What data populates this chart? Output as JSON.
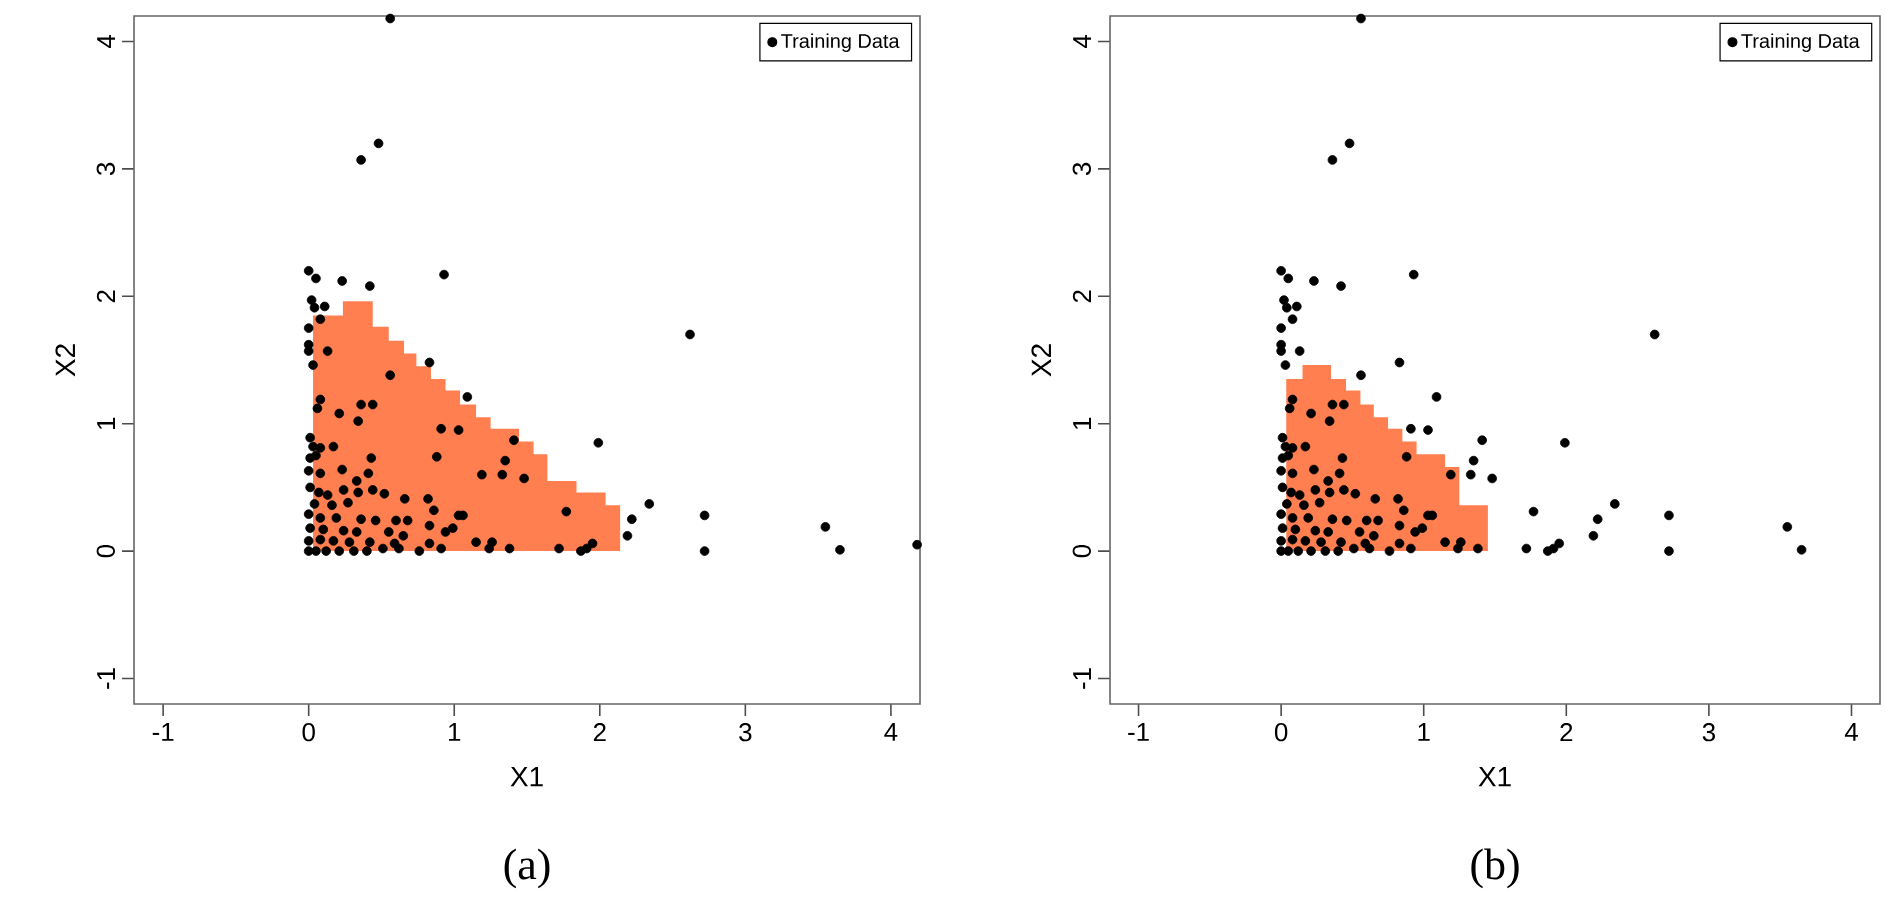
{
  "chart_data": [
    {
      "type": "scatter",
      "xlabel": "X1",
      "ylabel": "X2",
      "annotations": [
        "(a)"
      ],
      "xlim": [
        -1.2,
        4.2
      ],
      "ylim": [
        -1.2,
        4.2
      ],
      "xticks": [
        -1,
        0,
        1,
        2,
        3,
        4
      ],
      "yticks": [
        -1,
        0,
        1,
        2,
        3,
        4
      ],
      "legend": "top right",
      "grid": false,
      "marker": "circle",
      "series": [
        {
          "type": "area",
          "marker": "none",
          "color": "#ff7f50",
          "x": [
            0.03,
            0.235,
            0.235,
            0.44,
            0.44,
            0.55,
            0.55,
            0.655,
            0.655,
            0.74,
            0.74,
            0.84,
            0.84,
            0.94,
            0.94,
            1.04,
            1.04,
            1.15,
            1.15,
            1.25,
            1.25,
            1.445,
            1.445,
            1.545,
            1.545,
            1.64,
            1.64,
            1.84,
            1.84,
            2.04,
            2.04,
            2.14
          ],
          "values": [
            1.85,
            1.85,
            1.96,
            1.96,
            1.76,
            1.76,
            1.65,
            1.65,
            1.55,
            1.55,
            1.45,
            1.45,
            1.35,
            1.35,
            1.26,
            1.26,
            1.15,
            1.15,
            1.05,
            1.05,
            0.96,
            0.96,
            0.86,
            0.86,
            0.76,
            0.76,
            0.55,
            0.55,
            0.46,
            0.46,
            0.36,
            0.36
          ]
        },
        {
          "name": "Training Data",
          "color": "#000000",
          "x": [
            0.36,
            0.48,
            0.0,
            0.05,
            0.23,
            0.42,
            0.93,
            0.02,
            0.04,
            0.11,
            0.08,
            0.0,
            0.0,
            0.0,
            0.13,
            0.03,
            0.83,
            0.56,
            1.09,
            0.08,
            0.06,
            0.36,
            0.44,
            0.21,
            0.34,
            0.91,
            1.03,
            1.41,
            1.99,
            2.62,
            0.01,
            0.03,
            0.08,
            0.17,
            0.01,
            0.05,
            0.43,
            0.88,
            1.35,
            0.0,
            0.08,
            0.23,
            0.41,
            1.19,
            1.33,
            1.48,
            0.33,
            0.01,
            0.07,
            0.13,
            0.24,
            0.34,
            0.44,
            0.52,
            0.66,
            0.82,
            0.04,
            0.16,
            0.27,
            0.86,
            1.77,
            2.34,
            2.72,
            3.55,
            0.0,
            0.08,
            0.19,
            0.36,
            0.46,
            0.6,
            0.68,
            1.03,
            1.06,
            2.22,
            0.01,
            0.1,
            0.24,
            0.33,
            0.55,
            0.65,
            0.83,
            0.94,
            0.99,
            2.19,
            0.0,
            0.08,
            0.17,
            0.28,
            0.42,
            0.59,
            0.83,
            1.15,
            1.26,
            1.95,
            0.0,
            0.05,
            0.12,
            0.21,
            0.31,
            0.4,
            0.51,
            0.62,
            0.76,
            0.91,
            1.24,
            1.38,
            1.72,
            1.87,
            1.91,
            2.72,
            3.65,
            4.18,
            0.56
          ],
          "values": [
            3.07,
            3.2,
            2.2,
            2.14,
            2.12,
            2.08,
            2.17,
            1.97,
            1.91,
            1.92,
            1.82,
            1.75,
            1.62,
            1.57,
            1.57,
            1.46,
            1.48,
            1.38,
            1.21,
            1.19,
            1.12,
            1.15,
            1.15,
            1.08,
            1.02,
            0.96,
            0.95,
            0.87,
            0.85,
            1.7,
            0.89,
            0.82,
            0.81,
            0.82,
            0.73,
            0.75,
            0.73,
            0.74,
            0.71,
            0.63,
            0.61,
            0.64,
            0.61,
            0.6,
            0.6,
            0.57,
            0.55,
            0.5,
            0.46,
            0.44,
            0.48,
            0.46,
            0.48,
            0.45,
            0.41,
            0.41,
            0.37,
            0.36,
            0.38,
            0.32,
            0.31,
            0.37,
            0.28,
            0.19,
            0.29,
            0.26,
            0.26,
            0.25,
            0.24,
            0.24,
            0.24,
            0.28,
            0.28,
            0.25,
            0.18,
            0.17,
            0.16,
            0.15,
            0.15,
            0.12,
            0.2,
            0.15,
            0.18,
            0.12,
            0.08,
            0.09,
            0.08,
            0.07,
            0.07,
            0.06,
            0.06,
            0.07,
            0.07,
            0.06,
            0,
            0,
            0,
            0,
            0,
            0,
            0.02,
            0.02,
            0,
            0.02,
            0.02,
            0.02,
            0.02,
            0,
            0.02,
            0,
            0.01,
            0.05,
            4.18
          ]
        }
      ]
    },
    {
      "type": "scatter",
      "xlabel": "X1",
      "ylabel": "X2",
      "annotations": [
        "(b)"
      ],
      "xlim": [
        -1.2,
        4.2
      ],
      "ylim": [
        -1.2,
        4.2
      ],
      "xticks": [
        -1,
        0,
        1,
        2,
        3,
        4
      ],
      "yticks": [
        -1,
        0,
        1,
        2,
        3,
        4
      ],
      "legend": "top right",
      "grid": false,
      "marker": "circle",
      "series": [
        {
          "type": "area",
          "marker": "none",
          "color": "#ff7f50",
          "x": [
            0.036,
            0.15,
            0.15,
            0.35,
            0.35,
            0.455,
            0.455,
            0.556,
            0.556,
            0.65,
            0.65,
            0.75,
            0.75,
            0.85,
            0.85,
            0.95,
            0.95,
            1.15,
            1.15,
            1.25,
            1.25,
            1.45
          ],
          "values": [
            1.35,
            1.35,
            1.46,
            1.46,
            1.35,
            1.35,
            1.26,
            1.26,
            1.15,
            1.15,
            1.05,
            1.05,
            0.96,
            0.96,
            0.86,
            0.86,
            0.76,
            0.76,
            0.66,
            0.66,
            0.36,
            0.36
          ]
        },
        {
          "name": "Training Data",
          "color": "#000000",
          "x": [
            0.36,
            0.48,
            0.0,
            0.05,
            0.23,
            0.42,
            0.93,
            0.02,
            0.04,
            0.11,
            0.08,
            0.0,
            0.0,
            0.0,
            0.13,
            0.03,
            0.83,
            0.56,
            1.09,
            0.08,
            0.06,
            0.36,
            0.44,
            0.21,
            0.34,
            0.91,
            1.03,
            1.41,
            1.99,
            2.62,
            0.01,
            0.03,
            0.08,
            0.17,
            0.01,
            0.05,
            0.43,
            0.88,
            1.35,
            0.0,
            0.08,
            0.23,
            0.41,
            1.19,
            1.33,
            1.48,
            0.33,
            0.01,
            0.07,
            0.13,
            0.24,
            0.34,
            0.44,
            0.52,
            0.66,
            0.82,
            0.04,
            0.16,
            0.27,
            0.86,
            1.77,
            2.34,
            2.72,
            3.55,
            0.0,
            0.08,
            0.19,
            0.36,
            0.46,
            0.6,
            0.68,
            1.03,
            1.06,
            2.22,
            0.01,
            0.1,
            0.24,
            0.33,
            0.55,
            0.65,
            0.83,
            0.94,
            0.99,
            2.19,
            0.0,
            0.08,
            0.17,
            0.28,
            0.42,
            0.59,
            0.83,
            1.15,
            1.26,
            1.95,
            0.0,
            0.05,
            0.12,
            0.21,
            0.31,
            0.4,
            0.51,
            0.62,
            0.76,
            0.91,
            1.24,
            1.38,
            1.72,
            1.87,
            1.91,
            2.72,
            3.65,
            0.56
          ],
          "values": [
            3.07,
            3.2,
            2.2,
            2.14,
            2.12,
            2.08,
            2.17,
            1.97,
            1.91,
            1.92,
            1.82,
            1.75,
            1.62,
            1.57,
            1.57,
            1.46,
            1.48,
            1.38,
            1.21,
            1.19,
            1.12,
            1.15,
            1.15,
            1.08,
            1.02,
            0.96,
            0.95,
            0.87,
            0.85,
            1.7,
            0.89,
            0.82,
            0.81,
            0.82,
            0.73,
            0.75,
            0.73,
            0.74,
            0.71,
            0.63,
            0.61,
            0.64,
            0.61,
            0.6,
            0.6,
            0.57,
            0.55,
            0.5,
            0.46,
            0.44,
            0.48,
            0.46,
            0.48,
            0.45,
            0.41,
            0.41,
            0.37,
            0.36,
            0.38,
            0.32,
            0.31,
            0.37,
            0.28,
            0.19,
            0.29,
            0.26,
            0.26,
            0.25,
            0.24,
            0.24,
            0.24,
            0.28,
            0.28,
            0.25,
            0.18,
            0.17,
            0.16,
            0.15,
            0.15,
            0.12,
            0.2,
            0.15,
            0.18,
            0.12,
            0.08,
            0.09,
            0.08,
            0.07,
            0.07,
            0.06,
            0.06,
            0.07,
            0.07,
            0.06,
            0,
            0,
            0,
            0,
            0,
            0,
            0.02,
            0.02,
            0,
            0.02,
            0.02,
            0.02,
            0.02,
            0,
            0.02,
            0,
            0.01,
            4.18
          ]
        }
      ]
    }
  ]
}
